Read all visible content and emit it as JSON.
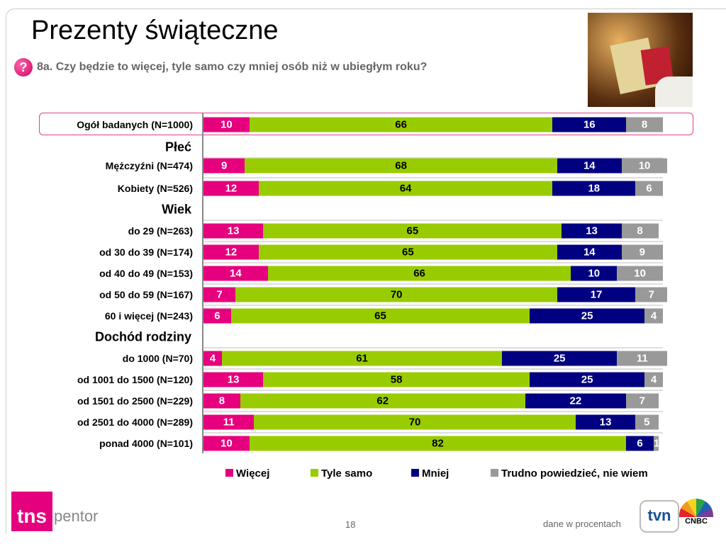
{
  "header": {
    "title": "Prezenty świąteczne",
    "question": "8a. Czy będzie to więcej, tyle samo czy mniej osób niż w ubiegłym roku?",
    "question_icon": "question-mark-icon"
  },
  "chart_data": {
    "type": "bar",
    "orientation": "horizontal",
    "stacked": true,
    "xlim": [
      0,
      100
    ],
    "series_names": [
      "Więcej",
      "Tyle samo",
      "Mniej",
      "Trudno powiedzieć, nie wiem"
    ],
    "colors": [
      "#e6007e",
      "#99cc00",
      "#000080",
      "#999999"
    ],
    "legend_position": "bottom",
    "rows": [
      {
        "label": "Ogół badanych (N=1000)",
        "values": [
          10,
          66,
          16,
          8
        ],
        "highlight": true
      },
      {
        "section": "Płeć"
      },
      {
        "label": "Mężczyźni (N=474)",
        "values": [
          9,
          68,
          14,
          10
        ]
      },
      {
        "label": "Kobiety (N=526)",
        "values": [
          12,
          64,
          18,
          6
        ]
      },
      {
        "section": "Wiek"
      },
      {
        "label": "do 29 (N=263)",
        "values": [
          13,
          65,
          13,
          8
        ]
      },
      {
        "label": "od 30 do 39 (N=174)",
        "values": [
          12,
          65,
          14,
          9
        ]
      },
      {
        "label": "od 40 do 49 (N=153)",
        "values": [
          14,
          66,
          10,
          10
        ]
      },
      {
        "label": "od 50 do 59 (N=167)",
        "values": [
          7,
          70,
          17,
          7
        ]
      },
      {
        "label": "60 i więcej (N=243)",
        "values": [
          6,
          65,
          25,
          4
        ]
      },
      {
        "section": "Dochód rodziny"
      },
      {
        "label": "do 1000 (N=70)",
        "values": [
          4,
          61,
          25,
          11
        ]
      },
      {
        "label": "od 1001 do 1500 (N=120)",
        "values": [
          13,
          58,
          25,
          4
        ]
      },
      {
        "label": "od 1501 do 2500 (N=229)",
        "values": [
          8,
          62,
          22,
          7
        ]
      },
      {
        "label": "od 2501 do 4000 (N=289)",
        "values": [
          11,
          70,
          13,
          5
        ]
      },
      {
        "label": "ponad 4000 (N=101)",
        "values": [
          10,
          82,
          6,
          1
        ]
      }
    ]
  },
  "footer": {
    "logo_left": "tns pentor",
    "page_number": "18",
    "note": "dane w procentach",
    "logo_right": "tvn CNBC"
  }
}
